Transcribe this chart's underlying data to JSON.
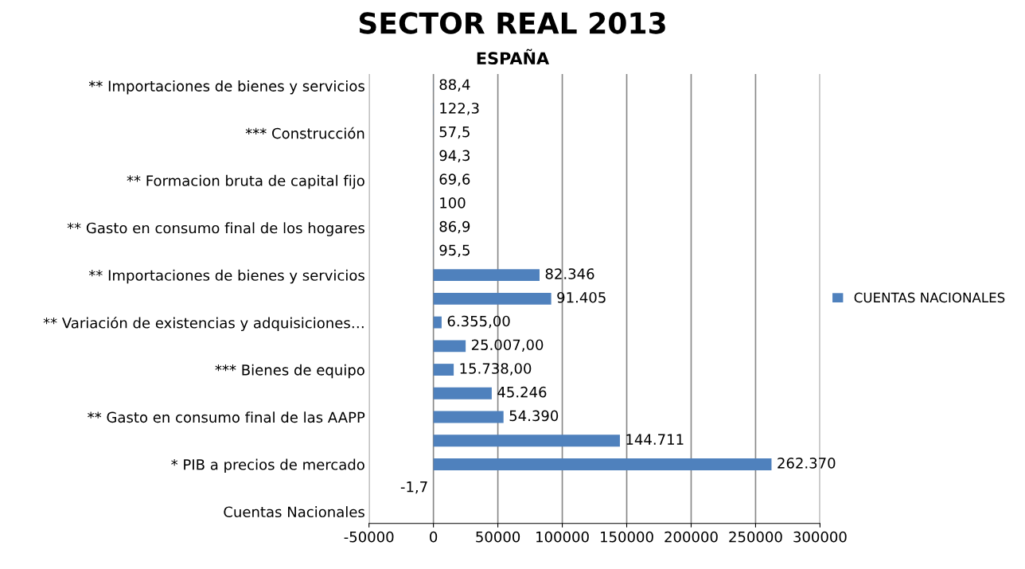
{
  "chart_data": {
    "type": "bar",
    "orientation": "horizontal",
    "title": "SECTOR REAL 2013",
    "subtitle": "ESPAÑA",
    "categories": [
      "** Importaciones de bienes y servicios",
      null,
      "*** Construcción",
      null,
      "** Formacion bruta de capital fijo",
      null,
      "** Gasto en consumo final de los hogares",
      null,
      "** Importaciones de bienes y servicios",
      null,
      "** Variación de existencias y adquisiciones…",
      null,
      "*** Bienes de equipo",
      null,
      "** Gasto en consumo final de las AAPP",
      null,
      "* PIB a precios de mercado",
      null,
      "Cuentas Nacionales"
    ],
    "series": [
      {
        "name": "CUENTAS NACIONALES",
        "color": "#4f81bd",
        "values": [
          88.4,
          122.3,
          57.5,
          94.3,
          69.6,
          100,
          86.9,
          95.5,
          82346,
          91405,
          6355,
          25007,
          15738,
          45246,
          54390,
          144711,
          262370,
          -1.7,
          null
        ],
        "value_labels": [
          "88,4",
          "122,3",
          "57,5",
          "94,3",
          "69,6",
          "100",
          "86,9",
          "95,5",
          "82.346",
          "91.405",
          "6.355,00",
          "25.007,00",
          "15.738,00",
          "45.246",
          "54.390",
          "144.711",
          "262.370",
          "-1,7",
          null
        ]
      }
    ],
    "xlim": [
      -50000,
      300000
    ],
    "xticks": [
      -50000,
      0,
      50000,
      100000,
      150000,
      200000,
      250000,
      300000
    ],
    "grid": "x",
    "legend": "right"
  }
}
